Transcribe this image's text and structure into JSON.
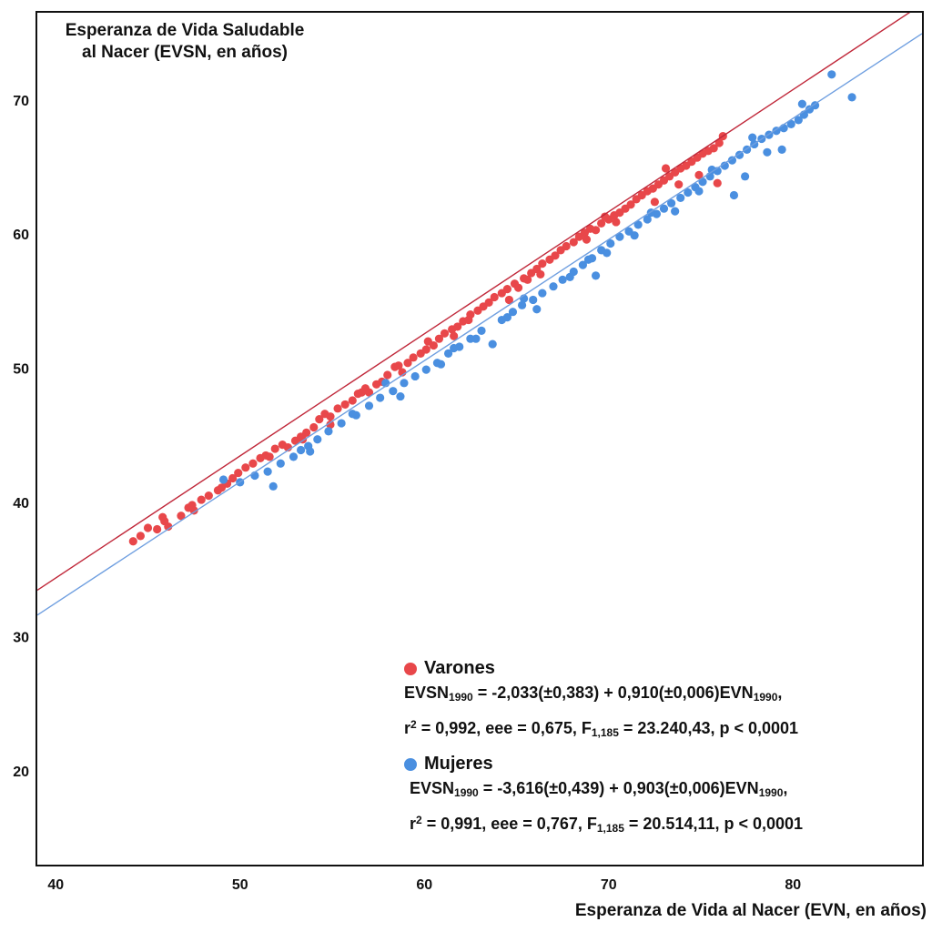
{
  "chart_data": {
    "type": "scatter",
    "title": "Esperanza de Vida Saludable al Nacer (EVSN, en años)",
    "title_lines": [
      "Esperanza de Vida Saludable",
      "al Nacer (EVSN, en años)"
    ],
    "xlabel": "Esperanza de Vida al Nacer (EVN, en años)",
    "ylabel": "Esperanza de Vida Saludable al Nacer (EVSN, en años)",
    "xlim": [
      39,
      87
    ],
    "ylim": [
      13,
      76.5
    ],
    "xticks": [
      "40",
      "50",
      "60",
      "70",
      "80"
    ],
    "yticks": [
      "20",
      "30",
      "40",
      "50",
      "60",
      "70"
    ],
    "grid": false,
    "legend_position": "bottom-right",
    "series": [
      {
        "name": "Varones",
        "color": "#e8474a",
        "fit_intercept": -2.033,
        "fit_slope": 0.91,
        "equation": {
          "lhs": "EVSN",
          "lhs_sub": "1990",
          "rhs": " = -2,033(±0,383) + 0,910(±0,006)EVN",
          "rhs_sub": "1990",
          "tail": ",",
          "r_prefix": "r",
          "r_sup": "2",
          "stats": " = 0,992, eee = 0,675, F",
          "f_sub": "1,185",
          "f_tail": " = 23.240,43, p < 0,0001"
        },
        "points": [
          [
            44.2,
            37.1
          ],
          [
            44.6,
            37.5
          ],
          [
            45.0,
            38.1
          ],
          [
            45.5,
            38.0
          ],
          [
            45.9,
            38.6
          ],
          [
            46.1,
            38.2
          ],
          [
            46.8,
            39.0
          ],
          [
            47.2,
            39.6
          ],
          [
            47.5,
            39.4
          ],
          [
            47.9,
            40.2
          ],
          [
            48.3,
            40.5
          ],
          [
            48.8,
            40.9
          ],
          [
            49.0,
            41.1
          ],
          [
            49.6,
            41.8
          ],
          [
            49.9,
            42.2
          ],
          [
            50.3,
            42.6
          ],
          [
            50.7,
            42.9
          ],
          [
            51.1,
            43.3
          ],
          [
            51.4,
            43.5
          ],
          [
            51.9,
            44.0
          ],
          [
            52.3,
            44.3
          ],
          [
            52.6,
            44.1
          ],
          [
            53.0,
            44.6
          ],
          [
            53.3,
            44.9
          ],
          [
            53.6,
            45.2
          ],
          [
            54.0,
            45.6
          ],
          [
            54.3,
            46.2
          ],
          [
            54.6,
            46.6
          ],
          [
            54.9,
            46.4
          ],
          [
            55.3,
            47.0
          ],
          [
            55.7,
            47.3
          ],
          [
            56.1,
            47.6
          ],
          [
            56.4,
            48.1
          ],
          [
            56.8,
            48.5
          ],
          [
            57.0,
            48.2
          ],
          [
            57.4,
            48.8
          ],
          [
            57.7,
            49.0
          ],
          [
            58.0,
            49.5
          ],
          [
            58.4,
            50.1
          ],
          [
            58.8,
            49.7
          ],
          [
            59.1,
            50.4
          ],
          [
            59.4,
            50.8
          ],
          [
            59.8,
            51.1
          ],
          [
            60.1,
            51.4
          ],
          [
            60.5,
            51.7
          ],
          [
            60.8,
            52.2
          ],
          [
            61.1,
            52.6
          ],
          [
            61.5,
            52.9
          ],
          [
            61.8,
            53.1
          ],
          [
            62.1,
            53.5
          ],
          [
            62.5,
            54.0
          ],
          [
            62.9,
            54.3
          ],
          [
            63.2,
            54.6
          ],
          [
            63.5,
            54.9
          ],
          [
            63.8,
            55.3
          ],
          [
            64.2,
            55.6
          ],
          [
            64.5,
            55.9
          ],
          [
            64.9,
            56.3
          ],
          [
            65.1,
            56.0
          ],
          [
            65.4,
            56.7
          ],
          [
            65.8,
            57.1
          ],
          [
            66.1,
            57.4
          ],
          [
            66.4,
            57.8
          ],
          [
            66.8,
            58.1
          ],
          [
            67.1,
            58.4
          ],
          [
            67.4,
            58.8
          ],
          [
            67.7,
            59.1
          ],
          [
            68.1,
            59.4
          ],
          [
            68.4,
            59.8
          ],
          [
            68.7,
            60.1
          ],
          [
            69.0,
            60.4
          ],
          [
            69.3,
            60.3
          ],
          [
            69.6,
            60.8
          ],
          [
            70.0,
            61.1
          ],
          [
            70.3,
            61.4
          ],
          [
            70.6,
            61.6
          ],
          [
            70.9,
            61.9
          ],
          [
            71.2,
            62.2
          ],
          [
            71.5,
            62.6
          ],
          [
            71.8,
            62.9
          ],
          [
            72.1,
            63.2
          ],
          [
            72.4,
            63.4
          ],
          [
            72.7,
            63.7
          ],
          [
            73.0,
            64.0
          ],
          [
            73.3,
            64.3
          ],
          [
            73.6,
            64.6
          ],
          [
            73.9,
            64.9
          ],
          [
            74.2,
            65.1
          ],
          [
            74.5,
            65.4
          ],
          [
            74.8,
            65.7
          ],
          [
            75.1,
            66.0
          ],
          [
            75.4,
            66.2
          ],
          [
            75.7,
            66.4
          ],
          [
            76.0,
            66.8
          ],
          [
            76.2,
            67.3
          ],
          [
            75.9,
            63.8
          ],
          [
            73.1,
            64.9
          ],
          [
            72.5,
            62.4
          ],
          [
            70.4,
            60.9
          ],
          [
            68.8,
            59.6
          ],
          [
            66.3,
            57.0
          ],
          [
            64.6,
            55.1
          ],
          [
            62.4,
            53.6
          ],
          [
            60.2,
            52.0
          ],
          [
            58.6,
            50.2
          ],
          [
            56.6,
            48.2
          ],
          [
            54.9,
            45.8
          ],
          [
            53.4,
            44.7
          ],
          [
            51.6,
            43.4
          ],
          [
            49.3,
            41.4
          ],
          [
            47.4,
            39.8
          ],
          [
            45.8,
            38.9
          ],
          [
            61.6,
            52.4
          ],
          [
            65.6,
            56.6
          ],
          [
            69.8,
            61.3
          ],
          [
            73.8,
            63.7
          ],
          [
            74.9,
            64.4
          ]
        ]
      },
      {
        "name": "Mujeres",
        "color": "#4a8fe0",
        "fit_intercept": -3.616,
        "fit_slope": 0.903,
        "equation": {
          "lhs": "EVSN",
          "lhs_sub": "1990",
          "rhs": " = -3,616(±0,439) + 0,903(±0,006)EVN",
          "rhs_sub": "1990",
          "tail": ",",
          "r_prefix": "r",
          "r_sup": "2",
          "stats": " = 0,991, eee = 0,767, F",
          "f_sub": "1,185",
          "f_tail": " = 20.514,11, p < 0,0001"
        },
        "points": [
          [
            49.1,
            41.7
          ],
          [
            50.0,
            41.5
          ],
          [
            50.8,
            42.0
          ],
          [
            51.8,
            41.2
          ],
          [
            52.2,
            42.9
          ],
          [
            52.9,
            43.4
          ],
          [
            53.3,
            43.9
          ],
          [
            53.7,
            44.2
          ],
          [
            54.2,
            44.7
          ],
          [
            54.8,
            45.3
          ],
          [
            55.5,
            45.9
          ],
          [
            56.3,
            46.5
          ],
          [
            57.0,
            47.2
          ],
          [
            57.6,
            47.8
          ],
          [
            58.3,
            48.3
          ],
          [
            58.9,
            48.9
          ],
          [
            59.5,
            49.4
          ],
          [
            60.1,
            49.9
          ],
          [
            60.7,
            50.4
          ],
          [
            61.3,
            51.1
          ],
          [
            61.9,
            51.6
          ],
          [
            62.5,
            52.2
          ],
          [
            63.1,
            52.8
          ],
          [
            63.7,
            51.8
          ],
          [
            64.2,
            53.6
          ],
          [
            64.8,
            54.2
          ],
          [
            65.3,
            54.7
          ],
          [
            65.9,
            55.1
          ],
          [
            66.4,
            55.6
          ],
          [
            67.0,
            56.1
          ],
          [
            67.5,
            56.6
          ],
          [
            68.1,
            57.2
          ],
          [
            68.6,
            57.7
          ],
          [
            69.1,
            58.2
          ],
          [
            69.3,
            56.9
          ],
          [
            69.6,
            58.8
          ],
          [
            70.1,
            59.3
          ],
          [
            70.6,
            59.8
          ],
          [
            71.1,
            60.2
          ],
          [
            71.6,
            60.7
          ],
          [
            72.1,
            61.1
          ],
          [
            72.6,
            61.5
          ],
          [
            73.0,
            61.9
          ],
          [
            73.4,
            62.3
          ],
          [
            73.9,
            62.7
          ],
          [
            74.3,
            63.1
          ],
          [
            74.7,
            63.5
          ],
          [
            75.1,
            63.9
          ],
          [
            75.5,
            64.3
          ],
          [
            75.9,
            64.7
          ],
          [
            76.3,
            65.1
          ],
          [
            76.7,
            65.5
          ],
          [
            77.1,
            65.9
          ],
          [
            77.5,
            66.3
          ],
          [
            77.9,
            66.7
          ],
          [
            78.3,
            67.1
          ],
          [
            78.7,
            67.4
          ],
          [
            79.1,
            67.7
          ],
          [
            79.5,
            67.9
          ],
          [
            79.9,
            68.2
          ],
          [
            80.3,
            68.5
          ],
          [
            80.6,
            68.9
          ],
          [
            80.9,
            69.3
          ],
          [
            81.2,
            69.6
          ],
          [
            80.5,
            69.7
          ],
          [
            82.1,
            71.9
          ],
          [
            83.2,
            70.2
          ],
          [
            76.8,
            62.9
          ],
          [
            77.4,
            64.3
          ],
          [
            78.6,
            66.1
          ],
          [
            79.4,
            66.3
          ],
          [
            74.9,
            63.2
          ],
          [
            73.6,
            61.7
          ],
          [
            71.4,
            59.9
          ],
          [
            69.9,
            58.6
          ],
          [
            67.9,
            56.8
          ],
          [
            66.1,
            54.4
          ],
          [
            64.5,
            53.8
          ],
          [
            62.8,
            52.2
          ],
          [
            60.9,
            50.3
          ],
          [
            58.7,
            47.9
          ],
          [
            56.1,
            46.6
          ],
          [
            53.8,
            43.8
          ],
          [
            51.5,
            42.3
          ],
          [
            57.9,
            48.9
          ],
          [
            61.6,
            51.5
          ],
          [
            65.4,
            55.2
          ],
          [
            68.9,
            58.1
          ],
          [
            72.3,
            61.6
          ],
          [
            75.6,
            64.8
          ],
          [
            77.8,
            67.2
          ]
        ]
      }
    ]
  }
}
